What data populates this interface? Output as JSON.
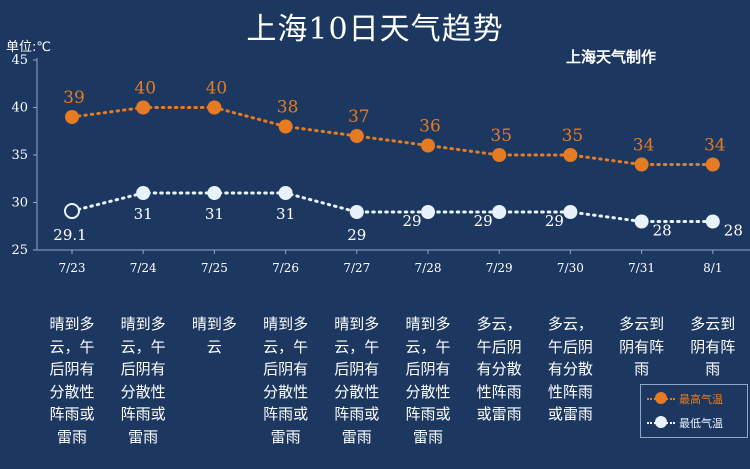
{
  "title": "上海10日天气趋势",
  "unit_label": "单位:℃",
  "credit": "上海天气制作",
  "colors": {
    "high": "#e57b22",
    "low": "#e8f2fb",
    "background": "#1d3860",
    "axis": "#8fa6c4"
  },
  "chart_data": {
    "type": "line",
    "title": "上海10日天气趋势",
    "ylabel": "单位:℃",
    "ylim": [
      25,
      45
    ],
    "yticks": [
      25,
      30,
      35,
      40,
      45
    ],
    "grid": false,
    "legend_position": "bottom-right",
    "categories": [
      "7/23",
      "7/24",
      "7/25",
      "7/26",
      "7/27",
      "7/28",
      "7/29",
      "7/30",
      "7/31",
      "8/1"
    ],
    "series": [
      {
        "name": "最高气温",
        "color": "#e57b22",
        "values": [
          39,
          40,
          40,
          38,
          37,
          36,
          35,
          35,
          34,
          34
        ],
        "labels": [
          "39",
          "40",
          "40",
          "38",
          "37",
          "36",
          "35",
          "35",
          "34",
          "34"
        ]
      },
      {
        "name": "最低气温",
        "color": "#e8f2fb",
        "values": [
          29.1,
          31,
          31,
          31,
          29,
          29,
          29,
          29,
          28,
          28
        ],
        "labels": [
          "29.1",
          "31",
          "31",
          "31",
          "29",
          "29",
          "29",
          "29",
          "28",
          "28"
        ]
      }
    ]
  },
  "weather": [
    {
      "date": "7/23",
      "lines": [
        "晴到多",
        "云，午",
        "后阴有",
        "分散性",
        "阵雨或",
        "雷雨"
      ]
    },
    {
      "date": "7/24",
      "lines": [
        "晴到多",
        "云，午",
        "后阴有",
        "分散性",
        "阵雨或",
        "雷雨"
      ]
    },
    {
      "date": "7/25",
      "lines": [
        "晴到多",
        "云"
      ]
    },
    {
      "date": "7/26",
      "lines": [
        "晴到多",
        "云，午",
        "后阴有",
        "分散性",
        "阵雨或",
        "雷雨"
      ]
    },
    {
      "date": "7/27",
      "lines": [
        "晴到多",
        "云，午",
        "后阴有",
        "分散性",
        "阵雨或",
        "雷雨"
      ]
    },
    {
      "date": "7/28",
      "lines": [
        "晴到多",
        "云，午",
        "后阴有",
        "分散性",
        "阵雨或",
        "雷雨"
      ]
    },
    {
      "date": "7/29",
      "lines": [
        "多云，",
        "午后阴",
        "有分散",
        "性阵雨",
        "或雷雨"
      ]
    },
    {
      "date": "7/30",
      "lines": [
        "多云，",
        "午后阴",
        "有分散",
        "性阵雨",
        "或雷雨"
      ]
    },
    {
      "date": "7/31",
      "lines": [
        "多云到",
        "阴有阵",
        "雨"
      ]
    },
    {
      "date": "8/1",
      "lines": [
        "多云到",
        "阴有阵",
        "雨"
      ]
    }
  ],
  "legend": {
    "high": "最高气温",
    "low": "最低气温"
  }
}
